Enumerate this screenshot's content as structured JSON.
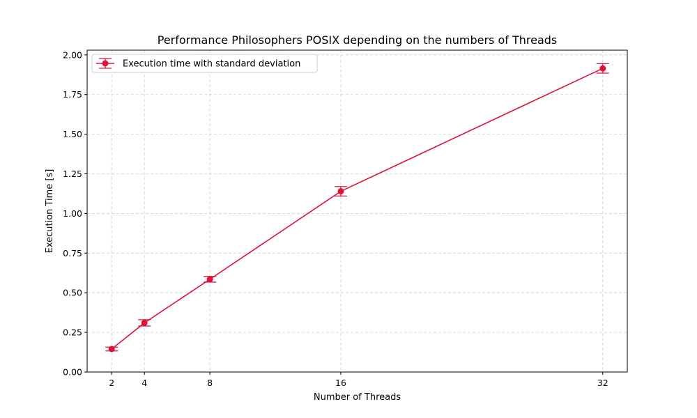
{
  "chart_data": {
    "type": "line",
    "title": "Performance Philosophers POSIX depending on the numbers of Threads",
    "xlabel": "Number of Threads",
    "ylabel": "Execution Time [s]",
    "xlim": [
      0.5,
      33.5
    ],
    "ylim": [
      0,
      2.03
    ],
    "xticks": [
      2,
      4,
      8,
      16,
      32
    ],
    "xtick_labels": [
      "2",
      "4",
      "8",
      "16",
      "32"
    ],
    "yticks": [
      0,
      0.25,
      0.5,
      0.75,
      1.0,
      1.25,
      1.5,
      1.75,
      2.0
    ],
    "ytick_labels": [
      "0.00",
      "0.25",
      "0.50",
      "0.75",
      "1.00",
      "1.25",
      "1.50",
      "1.75",
      "2.00"
    ],
    "grid": true,
    "legend_position": "top-left",
    "series": [
      {
        "name": "Execution time with standard deviation",
        "color": "#dc143c",
        "x": [
          2,
          4,
          8,
          16,
          32
        ],
        "y": [
          0.145,
          0.31,
          0.585,
          1.14,
          1.915
        ],
        "yerr": [
          0.012,
          0.02,
          0.018,
          0.03,
          0.03
        ]
      }
    ]
  }
}
